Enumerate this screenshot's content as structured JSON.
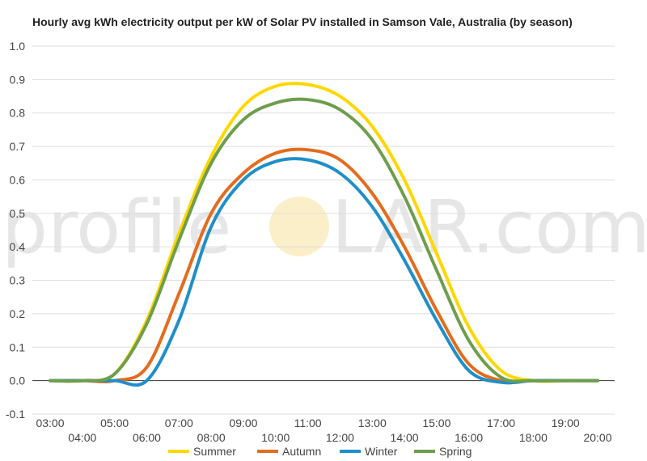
{
  "chart_data": {
    "type": "line",
    "title": "Hourly avg kWh electricity output per kW of Solar PV installed in Samson Vale, Australia (by season)",
    "xlabel": "",
    "ylabel": "",
    "x": [
      "03:00",
      "04:00",
      "05:00",
      "06:00",
      "07:00",
      "08:00",
      "09:00",
      "10:00",
      "11:00",
      "12:00",
      "13:00",
      "14:00",
      "15:00",
      "16:00",
      "17:00",
      "18:00",
      "19:00",
      "20:00"
    ],
    "ylim": [
      -0.1,
      1.0
    ],
    "yticks": [
      -0.1,
      0.0,
      0.1,
      0.2,
      0.3,
      0.4,
      0.5,
      0.6,
      0.7,
      0.8,
      0.9,
      1.0
    ],
    "ytick_labels": [
      "-0.1",
      "0.0",
      "0.1",
      "0.2",
      "0.3",
      "0.4",
      "0.5",
      "0.6",
      "0.7",
      "0.8",
      "0.9",
      "1.0"
    ],
    "grid": true,
    "legend_position": "bottom",
    "series": [
      {
        "name": "Summer",
        "color": "#FFD700",
        "values": [
          0.0,
          0.0,
          0.02,
          0.18,
          0.44,
          0.67,
          0.82,
          0.88,
          0.885,
          0.85,
          0.76,
          0.6,
          0.38,
          0.16,
          0.03,
          0.0,
          0.0,
          0.0
        ]
      },
      {
        "name": "Autumn",
        "color": "#E36C1E",
        "values": [
          0.0,
          0.0,
          0.0,
          0.04,
          0.26,
          0.5,
          0.62,
          0.68,
          0.69,
          0.66,
          0.56,
          0.4,
          0.21,
          0.05,
          0.0,
          0.0,
          0.0,
          0.0
        ]
      },
      {
        "name": "Winter",
        "color": "#1F8FC9",
        "values": [
          0.0,
          0.0,
          0.0,
          0.0,
          0.18,
          0.46,
          0.6,
          0.655,
          0.66,
          0.62,
          0.52,
          0.36,
          0.18,
          0.03,
          -0.005,
          0.0,
          0.0,
          0.0
        ]
      },
      {
        "name": "Spring",
        "color": "#6E9E4C",
        "values": [
          0.0,
          0.0,
          0.02,
          0.17,
          0.42,
          0.65,
          0.78,
          0.83,
          0.84,
          0.81,
          0.72,
          0.55,
          0.33,
          0.12,
          0.01,
          0.0,
          0.0,
          0.0
        ]
      }
    ]
  },
  "watermark": {
    "text_left": "profile",
    "text_right": "LAR.com",
    "sun_color": "#FBEFC9"
  }
}
